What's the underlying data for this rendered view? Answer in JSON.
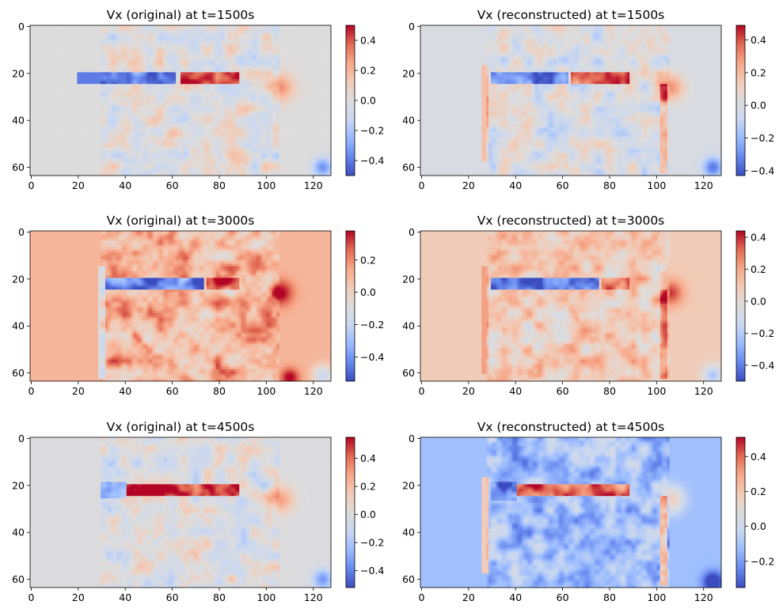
{
  "colormap": {
    "name": "coolwarm",
    "stops": [
      "#3b4cc0",
      "#6788ee",
      "#9abbff",
      "#c9d7f0",
      "#dddcdc",
      "#f2cbb7",
      "#f7a889",
      "#e26952",
      "#b40426"
    ]
  },
  "chart_data": [
    {
      "type": "heatmap",
      "title": "Vx (original) at t=1500s",
      "x_ticks": [
        "0",
        "20",
        "40",
        "60",
        "80",
        "100",
        "120"
      ],
      "y_ticks": [
        "0",
        "20",
        "40",
        "60"
      ],
      "grid_shape": [
        64,
        128
      ],
      "color_range": [
        -0.5,
        0.5
      ],
      "colorbar_ticks": [
        "0.4",
        "0.2",
        "0.0",
        "−0.2",
        "−0.4"
      ],
      "colorbar_tick_values": [
        0.4,
        0.2,
        0.0,
        -0.2,
        -0.4
      ],
      "background_value": 0.0,
      "features": [
        {
          "kind": "band",
          "x": [
            20,
            61
          ],
          "y": [
            20,
            24
          ],
          "value": -0.4
        },
        {
          "kind": "band",
          "x": [
            64,
            88
          ],
          "y": [
            20,
            24
          ],
          "value": 0.45
        },
        {
          "kind": "blob",
          "cx": 106,
          "cy": 26,
          "r": 4,
          "value": 0.3
        },
        {
          "kind": "blob",
          "cx": 124,
          "cy": 60,
          "r": 3,
          "value": -0.35
        },
        {
          "kind": "noise",
          "x": [
            30,
            105
          ],
          "y": [
            0,
            63
          ],
          "amp": 0.14
        }
      ]
    },
    {
      "type": "heatmap",
      "title": "Vx (reconstructed) at t=1500s",
      "x_ticks": [
        "0",
        "20",
        "40",
        "60",
        "80",
        "100",
        "120"
      ],
      "y_ticks": [
        "0",
        "20",
        "40",
        "60"
      ],
      "grid_shape": [
        64,
        128
      ],
      "color_range": [
        -0.43,
        0.49
      ],
      "colorbar_ticks": [
        "0.4",
        "0.2",
        "0.0",
        "−0.2",
        "−0.4"
      ],
      "colorbar_tick_values": [
        0.4,
        0.2,
        0.0,
        -0.2,
        -0.4
      ],
      "background_value": 0.0,
      "features": [
        {
          "kind": "band",
          "x": [
            30,
            62
          ],
          "y": [
            20,
            24
          ],
          "value": -0.33
        },
        {
          "kind": "band",
          "x": [
            64,
            88
          ],
          "y": [
            20,
            24
          ],
          "value": 0.4
        },
        {
          "kind": "line",
          "x": [
            26,
            28
          ],
          "y": [
            17,
            57
          ],
          "value": 0.18
        },
        {
          "kind": "line",
          "x": [
            102,
            104
          ],
          "y": [
            25,
            62
          ],
          "value": 0.22
        },
        {
          "kind": "blob",
          "cx": 106,
          "cy": 26,
          "r": 4,
          "value": 0.3
        },
        {
          "kind": "blob",
          "cx": 124,
          "cy": 60,
          "r": 3,
          "value": -0.35
        },
        {
          "kind": "noise",
          "x": [
            28,
            105
          ],
          "y": [
            0,
            63
          ],
          "amp": 0.13
        }
      ]
    },
    {
      "type": "heatmap",
      "title": "Vx (original) at t=3000s",
      "x_ticks": [
        "0",
        "20",
        "40",
        "60",
        "80",
        "100",
        "120"
      ],
      "y_ticks": [
        "0",
        "20",
        "40",
        "60"
      ],
      "grid_shape": [
        64,
        128
      ],
      "color_range": [
        -0.55,
        0.38
      ],
      "colorbar_ticks": [
        "0.2",
        "0.0",
        "−0.2",
        "−0.4"
      ],
      "colorbar_tick_values": [
        0.2,
        0.0,
        -0.2,
        -0.4
      ],
      "background_value": 0.1,
      "features": [
        {
          "kind": "band",
          "x": [
            30,
            73
          ],
          "y": [
            20,
            24
          ],
          "value": -0.45
        },
        {
          "kind": "band",
          "x": [
            75,
            88
          ],
          "y": [
            20,
            24
          ],
          "value": 0.33
        },
        {
          "kind": "line",
          "x": [
            29,
            31
          ],
          "y": [
            15,
            62
          ],
          "value": -0.1
        },
        {
          "kind": "blob",
          "cx": 106,
          "cy": 26,
          "r": 4,
          "value": 0.3
        },
        {
          "kind": "blob",
          "cx": 110,
          "cy": 62,
          "r": 3,
          "value": 0.3
        },
        {
          "kind": "blob",
          "cx": 124,
          "cy": 61,
          "r": 3,
          "value": -0.3
        },
        {
          "kind": "noise",
          "x": [
            30,
            105
          ],
          "y": [
            0,
            63
          ],
          "amp": 0.16
        }
      ]
    },
    {
      "type": "heatmap",
      "title": "Vx (reconstructed) at t=3000s",
      "x_ticks": [
        "0",
        "20",
        "40",
        "60",
        "80",
        "100",
        "120"
      ],
      "y_ticks": [
        "0",
        "20",
        "40",
        "60"
      ],
      "grid_shape": [
        64,
        128
      ],
      "color_range": [
        -0.5,
        0.44
      ],
      "colorbar_ticks": [
        "0.4",
        "0.2",
        "0.0",
        "−0.2",
        "−0.4"
      ],
      "colorbar_tick_values": [
        0.4,
        0.2,
        0.0,
        -0.2,
        -0.4
      ],
      "background_value": 0.08,
      "features": [
        {
          "kind": "band",
          "x": [
            30,
            75
          ],
          "y": [
            20,
            24
          ],
          "value": -0.42
        },
        {
          "kind": "band",
          "x": [
            77,
            88
          ],
          "y": [
            20,
            24
          ],
          "value": 0.3
        },
        {
          "kind": "line",
          "x": [
            26,
            28
          ],
          "y": [
            15,
            60
          ],
          "value": 0.22
        },
        {
          "kind": "line",
          "x": [
            102,
            104
          ],
          "y": [
            25,
            62
          ],
          "value": 0.25
        },
        {
          "kind": "blob",
          "cx": 106,
          "cy": 26,
          "r": 4,
          "value": 0.3
        },
        {
          "kind": "blob",
          "cx": 124,
          "cy": 61,
          "r": 3,
          "value": -0.3
        },
        {
          "kind": "noise",
          "x": [
            28,
            105
          ],
          "y": [
            0,
            63
          ],
          "amp": 0.14
        }
      ]
    },
    {
      "type": "heatmap",
      "title": "Vx (original) at t=4500s",
      "x_ticks": [
        "0",
        "20",
        "40",
        "60",
        "80",
        "100",
        "120"
      ],
      "y_ticks": [
        "0",
        "20",
        "40",
        "60"
      ],
      "grid_shape": [
        64,
        128
      ],
      "color_range": [
        -0.52,
        0.55
      ],
      "colorbar_ticks": [
        "0.4",
        "0.2",
        "0.0",
        "−0.2",
        "−0.4"
      ],
      "colorbar_tick_values": [
        0.4,
        0.2,
        0.0,
        -0.2,
        -0.4
      ],
      "background_value": 0.0,
      "features": [
        {
          "kind": "band",
          "x": [
            40,
            88
          ],
          "y": [
            20,
            24
          ],
          "value": 0.5
        },
        {
          "kind": "band",
          "x": [
            30,
            40
          ],
          "y": [
            19,
            25
          ],
          "value": -0.25
        },
        {
          "kind": "blob",
          "cx": 106,
          "cy": 26,
          "r": 4,
          "value": 0.3
        },
        {
          "kind": "blob",
          "cx": 124,
          "cy": 60,
          "r": 3,
          "value": -0.35
        },
        {
          "kind": "noise",
          "x": [
            30,
            105
          ],
          "y": [
            0,
            63
          ],
          "amp": 0.15
        }
      ]
    },
    {
      "type": "heatmap",
      "title": "Vx (reconstructed) at t=4500s",
      "x_ticks": [
        "0",
        "20",
        "40",
        "60",
        "80",
        "100",
        "120"
      ],
      "y_ticks": [
        "0",
        "20",
        "40",
        "60"
      ],
      "grid_shape": [
        64,
        128
      ],
      "color_range": [
        -0.35,
        0.51
      ],
      "colorbar_ticks": [
        "0.4",
        "0.2",
        "0.0",
        "−0.2"
      ],
      "colorbar_tick_values": [
        0.4,
        0.2,
        0.0,
        -0.2
      ],
      "background_value": -0.12,
      "features": [
        {
          "kind": "band",
          "x": [
            40,
            88
          ],
          "y": [
            20,
            24
          ],
          "value": 0.38
        },
        {
          "kind": "band",
          "x": [
            30,
            40
          ],
          "y": [
            19,
            26
          ],
          "value": -0.25
        },
        {
          "kind": "line",
          "x": [
            26,
            28
          ],
          "y": [
            17,
            57
          ],
          "value": 0.18
        },
        {
          "kind": "line",
          "x": [
            102,
            104
          ],
          "y": [
            25,
            62
          ],
          "value": 0.2
        },
        {
          "kind": "blob",
          "cx": 106,
          "cy": 26,
          "r": 4,
          "value": 0.3
        },
        {
          "kind": "blob",
          "cx": 124,
          "cy": 61,
          "r": 3,
          "value": -0.35
        },
        {
          "kind": "noise",
          "x": [
            28,
            105
          ],
          "y": [
            0,
            63
          ],
          "amp": 0.13
        }
      ]
    }
  ]
}
